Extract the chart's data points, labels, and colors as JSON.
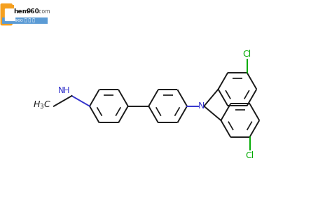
{
  "bg_color": "#ffffff",
  "bond_color": "#1a1a1a",
  "nitrogen_color": "#3333cc",
  "chlorine_color": "#00aa00",
  "ring_r": 0.52,
  "lw": 1.4,
  "fig_w": 4.74,
  "fig_h": 2.93,
  "dpi": 100,
  "xlim": [
    0,
    9.0
  ],
  "ylim": [
    0,
    5.5
  ]
}
